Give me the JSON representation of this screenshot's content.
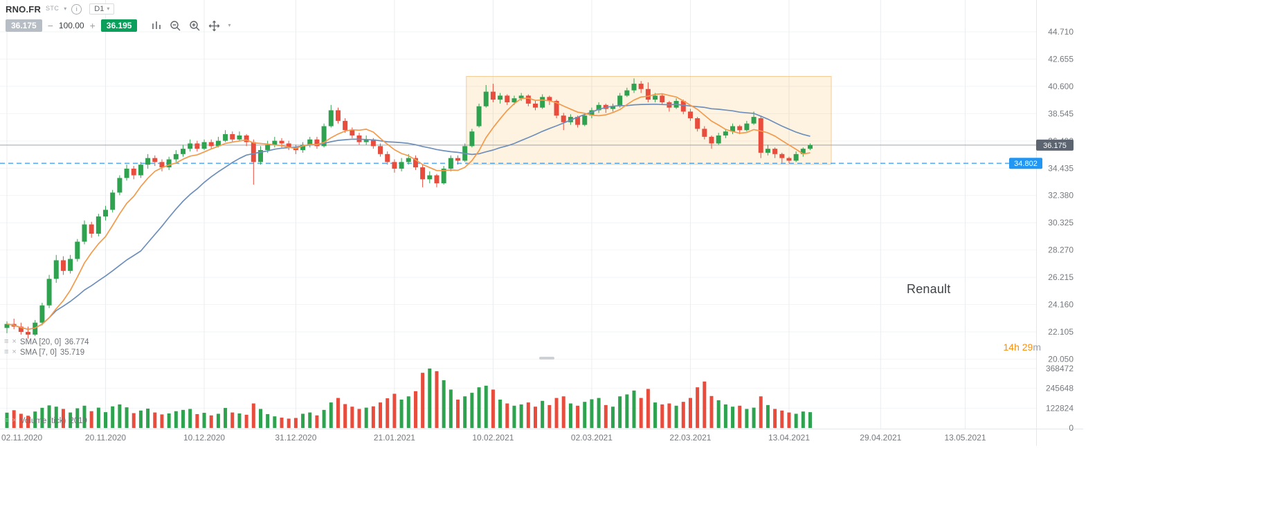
{
  "header": {
    "symbol": "RNO.FR",
    "market_badge": "STC",
    "timeframe": "D1",
    "order": {
      "sell_price": "36.175",
      "volume": "100.00",
      "buy_price": "36.195"
    }
  },
  "icons": {
    "chevron_down": "▾",
    "grip": "≡",
    "close": "×",
    "minus": "−",
    "plus": "+",
    "info": "i"
  },
  "legend": {
    "indicators": [
      {
        "label": "SMA [20, 0]",
        "value": "36.774"
      },
      {
        "label": "SMA [7, 0]",
        "value": "35.719"
      }
    ],
    "volume_label": "Volume (tick)",
    "volume_value": "2019"
  },
  "watermark": "Renault",
  "countdown": {
    "value": "14h 29",
    "unit": "m"
  },
  "chart_data": {
    "type": "candlestick",
    "symbol": "RNO.FR",
    "timeframe": "D1",
    "current_price": 36.175,
    "support_price": 34.802,
    "price_ticks": [
      44.71,
      42.655,
      40.6,
      38.545,
      36.49,
      34.435,
      32.38,
      30.325,
      28.27,
      26.215,
      24.16,
      22.105,
      20.05
    ],
    "volume_ticks": [
      368472,
      245648,
      122824,
      0
    ],
    "date_ticks": [
      {
        "label": "02.11.2020",
        "index": 0
      },
      {
        "label": "20.11.2020",
        "index": 14
      },
      {
        "label": "10.12.2020",
        "index": 28
      },
      {
        "label": "31.12.2020",
        "index": 41
      },
      {
        "label": "21.01.2021",
        "index": 55
      },
      {
        "label": "10.02.2021",
        "index": 69
      },
      {
        "label": "02.03.2021",
        "index": 83
      },
      {
        "label": "22.03.2021",
        "index": 97
      },
      {
        "label": "13.04.2021",
        "index": 111
      },
      {
        "label": "29.04.2021",
        "index": 124
      },
      {
        "label": "13.05.2021",
        "index": 136
      }
    ],
    "box_annotation": {
      "start_index": 65.2,
      "end_index": 117,
      "top_price": 41.35,
      "bottom_price": 34.72
    },
    "overlays": [
      {
        "type": "sma",
        "period": 20,
        "last_value": "36.774",
        "color": "#6d8fba"
      },
      {
        "type": "sma",
        "period": 7,
        "last_value": "35.719",
        "color": "#f39a4b"
      }
    ],
    "colors": {
      "up": "#2fa24f",
      "down": "#e84c3d",
      "support": "#45a0f5",
      "support_badge": "#2196f3",
      "price_line": "#9fa4a9",
      "price_badge": "#5c6470"
    },
    "candles": [
      [
        22.4,
        22.9,
        22.0,
        22.7
      ],
      [
        22.7,
        23.1,
        22.3,
        22.5
      ],
      [
        22.5,
        22.8,
        21.9,
        22.1
      ],
      [
        22.1,
        22.5,
        21.6,
        21.9
      ],
      [
        21.9,
        23.0,
        21.8,
        22.8
      ],
      [
        22.8,
        24.3,
        22.6,
        24.1
      ],
      [
        24.1,
        26.4,
        23.9,
        26.1
      ],
      [
        26.1,
        27.9,
        25.8,
        27.5
      ],
      [
        27.5,
        27.8,
        26.4,
        26.7
      ],
      [
        26.7,
        27.9,
        26.5,
        27.6
      ],
      [
        27.6,
        29.1,
        27.4,
        28.9
      ],
      [
        28.9,
        30.5,
        28.7,
        30.2
      ],
      [
        30.2,
        30.4,
        29.2,
        29.5
      ],
      [
        29.5,
        31.0,
        29.3,
        30.8
      ],
      [
        30.8,
        31.6,
        30.5,
        31.3
      ],
      [
        31.3,
        32.8,
        31.1,
        32.6
      ],
      [
        32.6,
        33.9,
        32.4,
        33.7
      ],
      [
        33.7,
        34.7,
        33.5,
        34.4
      ],
      [
        34.4,
        34.6,
        33.6,
        33.9
      ],
      [
        33.9,
        34.9,
        33.7,
        34.7
      ],
      [
        34.7,
        35.5,
        34.4,
        35.2
      ],
      [
        35.2,
        35.4,
        34.6,
        34.9
      ],
      [
        34.9,
        35.1,
        34.2,
        34.5
      ],
      [
        34.5,
        35.3,
        34.3,
        35.1
      ],
      [
        35.1,
        35.8,
        34.9,
        35.5
      ],
      [
        35.5,
        36.2,
        35.3,
        35.9
      ],
      [
        35.9,
        36.6,
        35.7,
        36.3
      ],
      [
        36.3,
        36.5,
        35.7,
        35.9
      ],
      [
        35.9,
        36.6,
        35.8,
        36.4
      ],
      [
        36.4,
        36.6,
        35.9,
        36.1
      ],
      [
        36.1,
        36.8,
        36.0,
        36.5
      ],
      [
        36.5,
        37.3,
        36.4,
        37.0
      ],
      [
        37.0,
        37.2,
        36.4,
        36.6
      ],
      [
        36.6,
        37.2,
        36.5,
        36.9
      ],
      [
        36.9,
        37.0,
        36.1,
        36.4
      ],
      [
        36.4,
        36.6,
        33.2,
        34.9
      ],
      [
        34.9,
        36.1,
        34.7,
        35.8
      ],
      [
        35.8,
        36.5,
        35.6,
        36.2
      ],
      [
        36.2,
        36.8,
        36.0,
        36.5
      ],
      [
        36.5,
        36.7,
        36.0,
        36.3
      ],
      [
        36.3,
        36.5,
        35.8,
        36.0
      ],
      [
        36.0,
        36.2,
        35.5,
        35.8
      ],
      [
        35.8,
        36.4,
        35.6,
        36.2
      ],
      [
        36.2,
        36.8,
        36.0,
        36.6
      ],
      [
        36.6,
        36.8,
        35.9,
        36.1
      ],
      [
        36.1,
        37.8,
        36.0,
        37.6
      ],
      [
        37.6,
        39.2,
        37.5,
        38.8
      ],
      [
        38.8,
        39.0,
        37.8,
        38.0
      ],
      [
        38.0,
        38.2,
        37.1,
        37.3
      ],
      [
        37.3,
        37.5,
        36.7,
        36.9
      ],
      [
        36.9,
        37.1,
        36.2,
        36.4
      ],
      [
        36.4,
        36.9,
        36.2,
        36.6
      ],
      [
        36.6,
        36.7,
        35.9,
        36.1
      ],
      [
        36.1,
        36.3,
        35.3,
        35.5
      ],
      [
        35.5,
        35.7,
        34.7,
        34.9
      ],
      [
        34.9,
        35.1,
        34.1,
        34.4
      ],
      [
        34.4,
        35.2,
        34.2,
        34.9
      ],
      [
        34.9,
        35.5,
        34.7,
        35.2
      ],
      [
        35.2,
        35.4,
        34.3,
        34.5
      ],
      [
        34.5,
        34.7,
        33.0,
        33.6
      ],
      [
        33.6,
        34.2,
        33.3,
        33.9
      ],
      [
        33.9,
        34.0,
        33.0,
        33.3
      ],
      [
        33.3,
        34.6,
        33.2,
        34.4
      ],
      [
        34.4,
        35.4,
        34.2,
        35.2
      ],
      [
        35.2,
        35.4,
        34.7,
        35.0
      ],
      [
        35.0,
        36.3,
        34.9,
        36.1
      ],
      [
        36.1,
        37.4,
        36.0,
        37.2
      ],
      [
        37.6,
        39.3,
        37.5,
        39.1
      ],
      [
        39.1,
        40.7,
        39.0,
        40.2
      ],
      [
        40.2,
        40.8,
        39.4,
        39.6
      ],
      [
        39.6,
        40.1,
        39.3,
        39.9
      ],
      [
        39.9,
        40.0,
        39.2,
        39.4
      ],
      [
        39.4,
        39.9,
        39.2,
        39.7
      ],
      [
        39.7,
        40.1,
        39.5,
        39.9
      ],
      [
        39.9,
        40.0,
        39.1,
        39.3
      ],
      [
        39.3,
        39.5,
        38.8,
        39.0
      ],
      [
        39.0,
        40.0,
        38.9,
        39.8
      ],
      [
        39.8,
        39.9,
        39.2,
        39.5
      ],
      [
        39.5,
        39.6,
        38.2,
        38.4
      ],
      [
        38.4,
        38.6,
        37.3,
        37.9
      ],
      [
        37.9,
        38.5,
        37.7,
        38.3
      ],
      [
        38.3,
        38.4,
        37.5,
        37.7
      ],
      [
        37.7,
        38.6,
        37.6,
        38.4
      ],
      [
        38.4,
        39.0,
        38.2,
        38.8
      ],
      [
        38.8,
        39.4,
        38.6,
        39.2
      ],
      [
        39.2,
        39.3,
        38.6,
        38.9
      ],
      [
        38.9,
        39.3,
        38.7,
        39.1
      ],
      [
        39.1,
        40.1,
        39.0,
        39.9
      ],
      [
        39.9,
        40.5,
        39.8,
        40.3
      ],
      [
        40.3,
        41.2,
        40.1,
        40.8
      ],
      [
        40.8,
        41.0,
        40.1,
        40.4
      ],
      [
        40.4,
        40.9,
        39.4,
        39.6
      ],
      [
        39.6,
        40.1,
        39.4,
        39.9
      ],
      [
        39.9,
        40.0,
        39.2,
        39.4
      ],
      [
        39.4,
        39.5,
        38.7,
        39.0
      ],
      [
        39.0,
        39.7,
        38.9,
        39.5
      ],
      [
        39.5,
        39.6,
        38.5,
        38.7
      ],
      [
        38.7,
        38.9,
        38.0,
        38.2
      ],
      [
        38.2,
        38.3,
        37.2,
        37.4
      ],
      [
        37.4,
        37.6,
        36.6,
        36.8
      ],
      [
        36.8,
        36.9,
        35.9,
        36.3
      ],
      [
        36.3,
        37.1,
        36.2,
        36.9
      ],
      [
        36.9,
        37.4,
        36.7,
        37.2
      ],
      [
        37.2,
        37.8,
        37.0,
        37.6
      ],
      [
        37.6,
        37.7,
        37.0,
        37.3
      ],
      [
        37.3,
        38.0,
        37.2,
        37.8
      ],
      [
        37.8,
        38.7,
        37.7,
        38.3
      ],
      [
        38.2,
        38.4,
        35.2,
        35.6
      ],
      [
        35.6,
        36.2,
        35.4,
        35.9
      ],
      [
        35.9,
        36.0,
        35.2,
        35.5
      ],
      [
        35.5,
        35.6,
        34.85,
        35.2
      ],
      [
        35.2,
        35.3,
        34.8,
        35.0
      ],
      [
        35.0,
        35.7,
        34.9,
        35.5
      ],
      [
        35.5,
        36.0,
        35.3,
        35.9
      ],
      [
        35.9,
        36.3,
        35.8,
        36.175
      ]
    ],
    "volumes": [
      95000,
      110000,
      88000,
      76000,
      102000,
      125000,
      140000,
      132000,
      118000,
      96000,
      122000,
      138000,
      104000,
      126000,
      98000,
      134000,
      146000,
      128000,
      92000,
      108000,
      120000,
      96000,
      84000,
      90000,
      104000,
      112000,
      118000,
      86000,
      94000,
      78000,
      88000,
      124000,
      96000,
      90000,
      82000,
      152000,
      118000,
      86000,
      72000,
      64000,
      58000,
      62000,
      88000,
      96000,
      78000,
      112000,
      158000,
      186000,
      148000,
      132000,
      118000,
      126000,
      134000,
      158000,
      184000,
      212000,
      176000,
      196000,
      228000,
      342000,
      368472,
      352000,
      296000,
      238000,
      176000,
      196000,
      218000,
      252000,
      262000,
      238000,
      176000,
      152000,
      138000,
      146000,
      158000,
      132000,
      168000,
      142000,
      186000,
      196000,
      152000,
      138000,
      162000,
      178000,
      186000,
      142000,
      132000,
      196000,
      208000,
      232000,
      186000,
      242000,
      158000,
      146000,
      152000,
      138000,
      162000,
      186000,
      252000,
      288000,
      198000,
      172000,
      146000,
      132000,
      138000,
      118000,
      126000,
      196000,
      142000,
      118000,
      108000,
      96000,
      88000,
      102000,
      98000
    ]
  }
}
